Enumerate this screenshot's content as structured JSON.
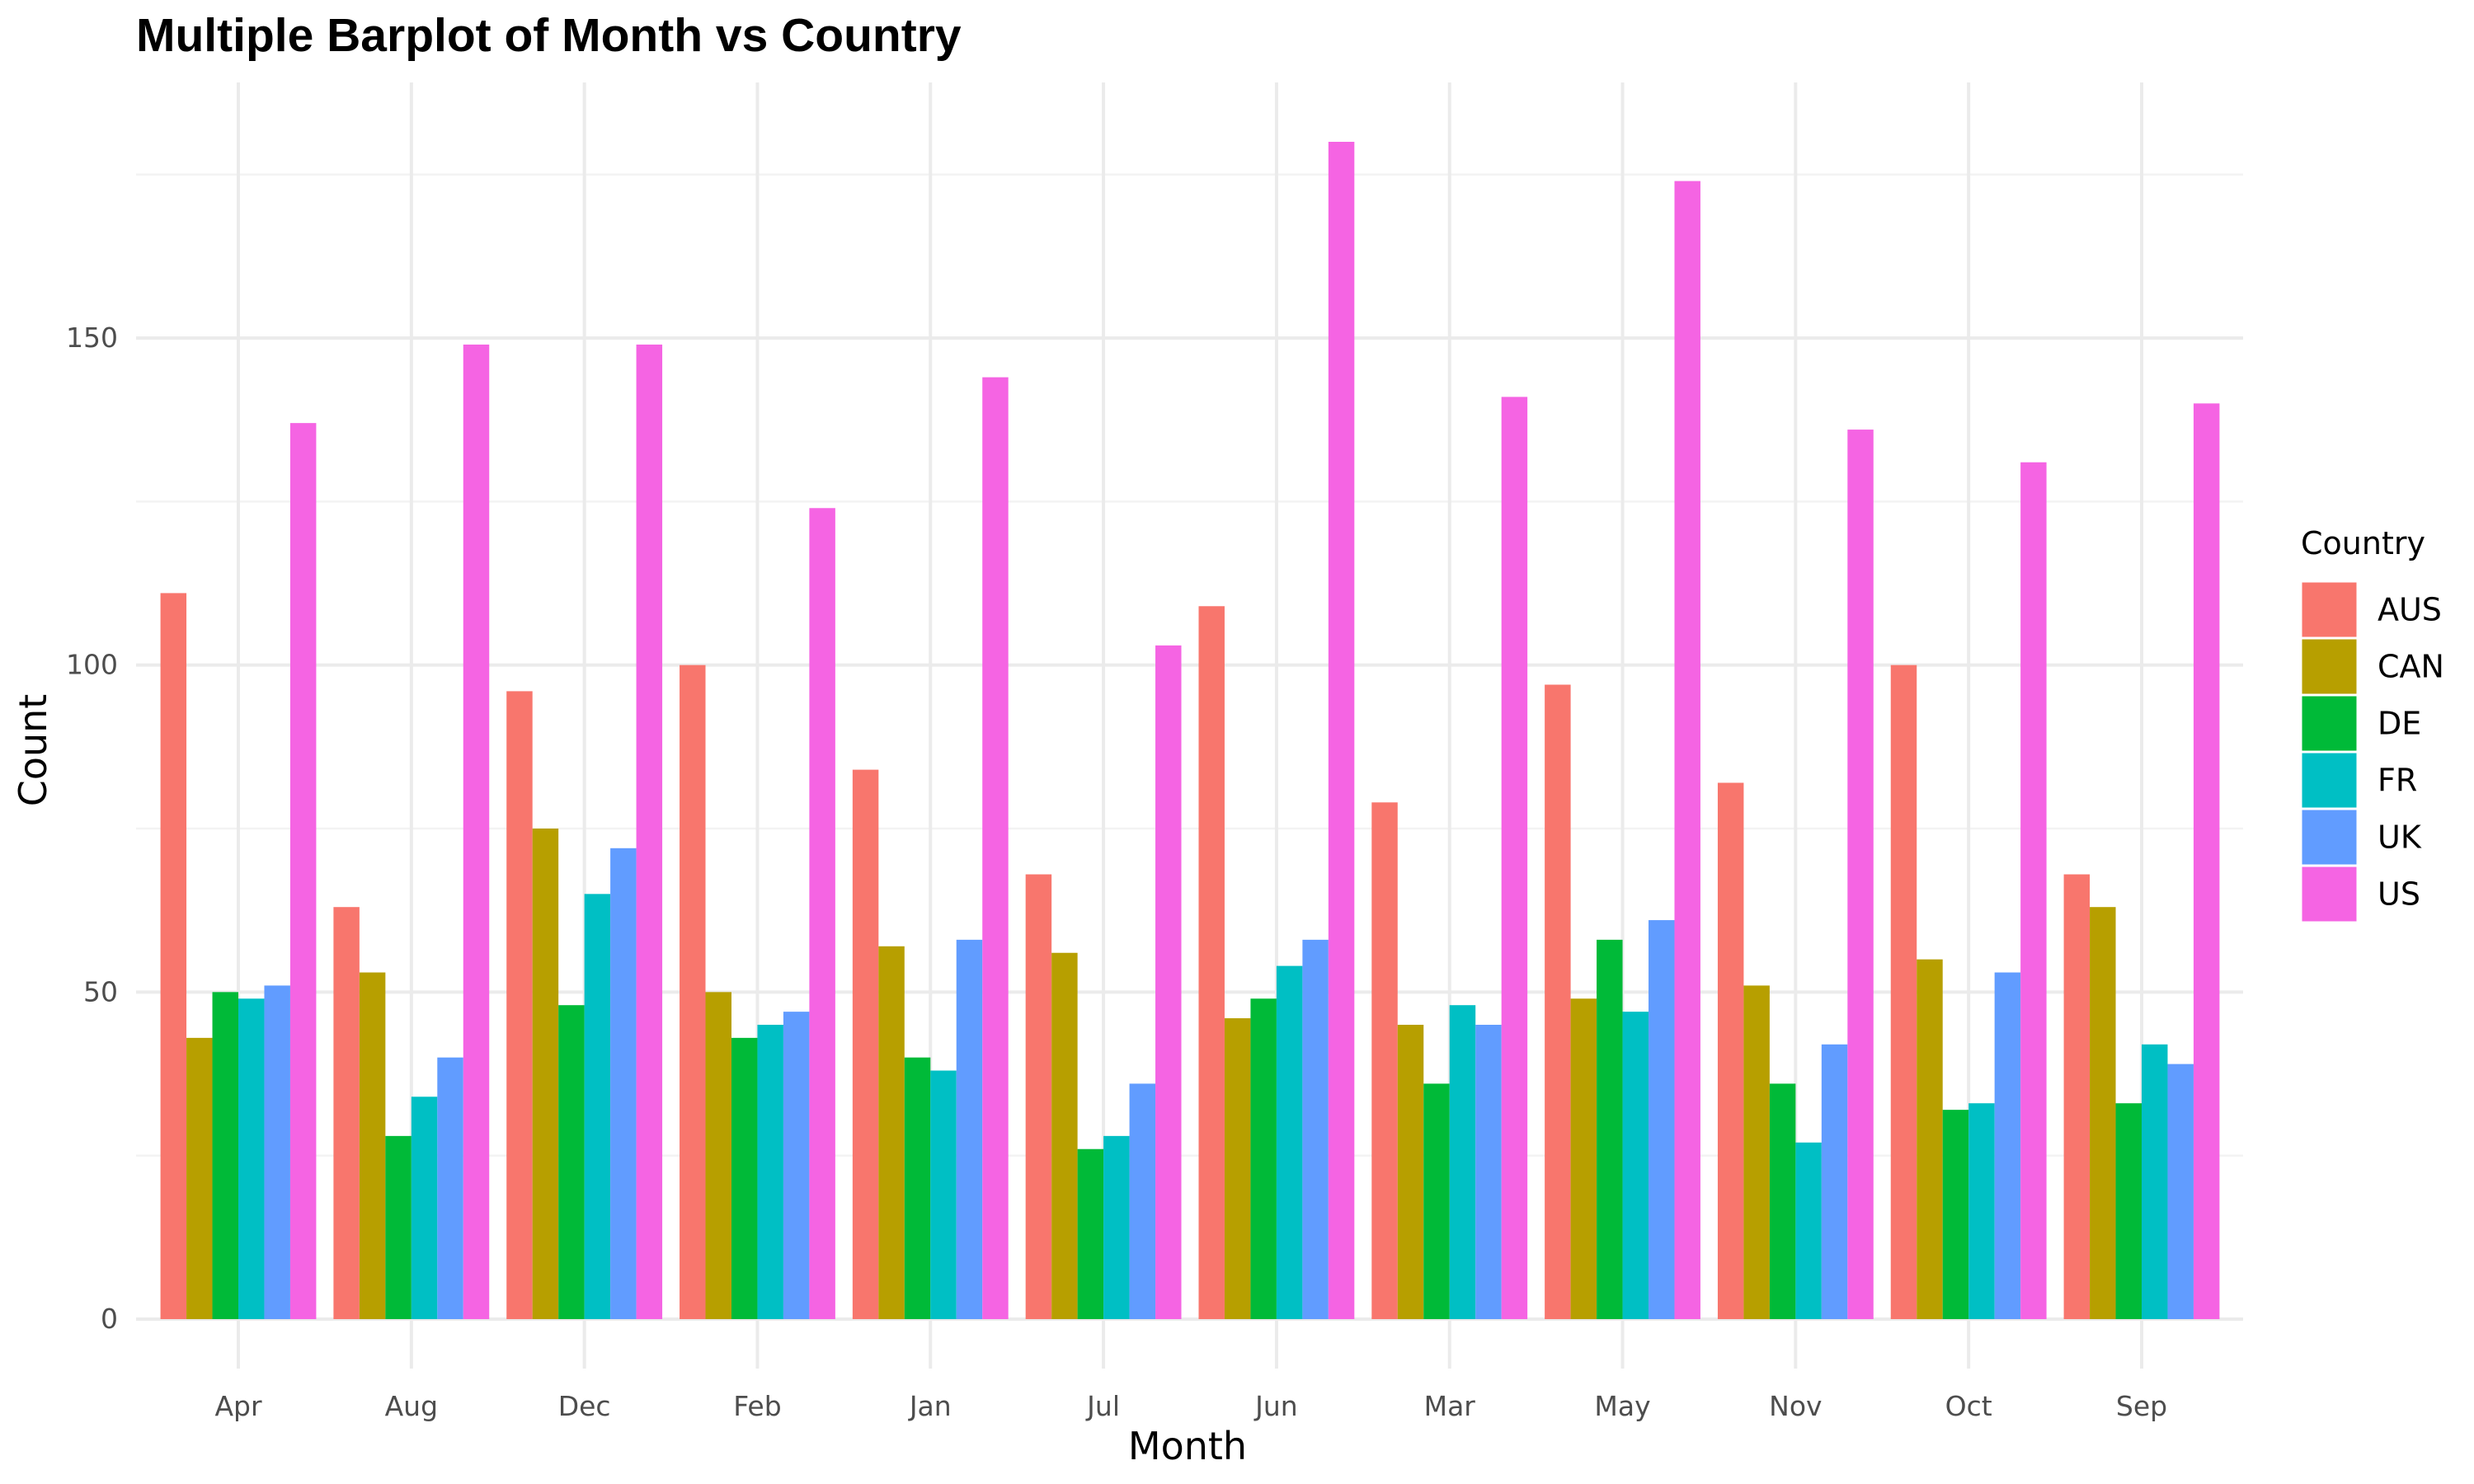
{
  "chart_data": {
    "type": "bar",
    "title": "Multiple Barplot of Month vs Country",
    "xlabel": "Month",
    "ylabel": "Count",
    "ylim": [
      0,
      180
    ],
    "yticks": [
      0,
      50,
      100,
      150
    ],
    "grid": true,
    "legend_title": "Country",
    "legend_position": "right",
    "categories": [
      "Apr",
      "Aug",
      "Dec",
      "Feb",
      "Jan",
      "Jul",
      "Jun",
      "Mar",
      "May",
      "Nov",
      "Oct",
      "Sep"
    ],
    "series": [
      {
        "name": "AUS",
        "color": "#F8766D",
        "values": [
          111,
          63,
          96,
          100,
          84,
          68,
          109,
          79,
          97,
          82,
          100,
          68
        ]
      },
      {
        "name": "CAN",
        "color": "#B79F00",
        "values": [
          43,
          53,
          75,
          50,
          57,
          56,
          46,
          45,
          49,
          51,
          55,
          63
        ]
      },
      {
        "name": "DE",
        "color": "#00BA38",
        "values": [
          50,
          28,
          48,
          43,
          40,
          26,
          49,
          36,
          58,
          36,
          32,
          33
        ]
      },
      {
        "name": "FR",
        "color": "#00BFC4",
        "values": [
          49,
          34,
          65,
          45,
          38,
          28,
          54,
          48,
          47,
          27,
          33,
          42
        ]
      },
      {
        "name": "UK",
        "color": "#619CFF",
        "values": [
          51,
          40,
          72,
          47,
          58,
          36,
          58,
          45,
          61,
          42,
          53,
          39
        ]
      },
      {
        "name": "US",
        "color": "#F564E3",
        "values": [
          137,
          149,
          149,
          124,
          144,
          103,
          180,
          141,
          174,
          136,
          131,
          140
        ]
      }
    ]
  }
}
